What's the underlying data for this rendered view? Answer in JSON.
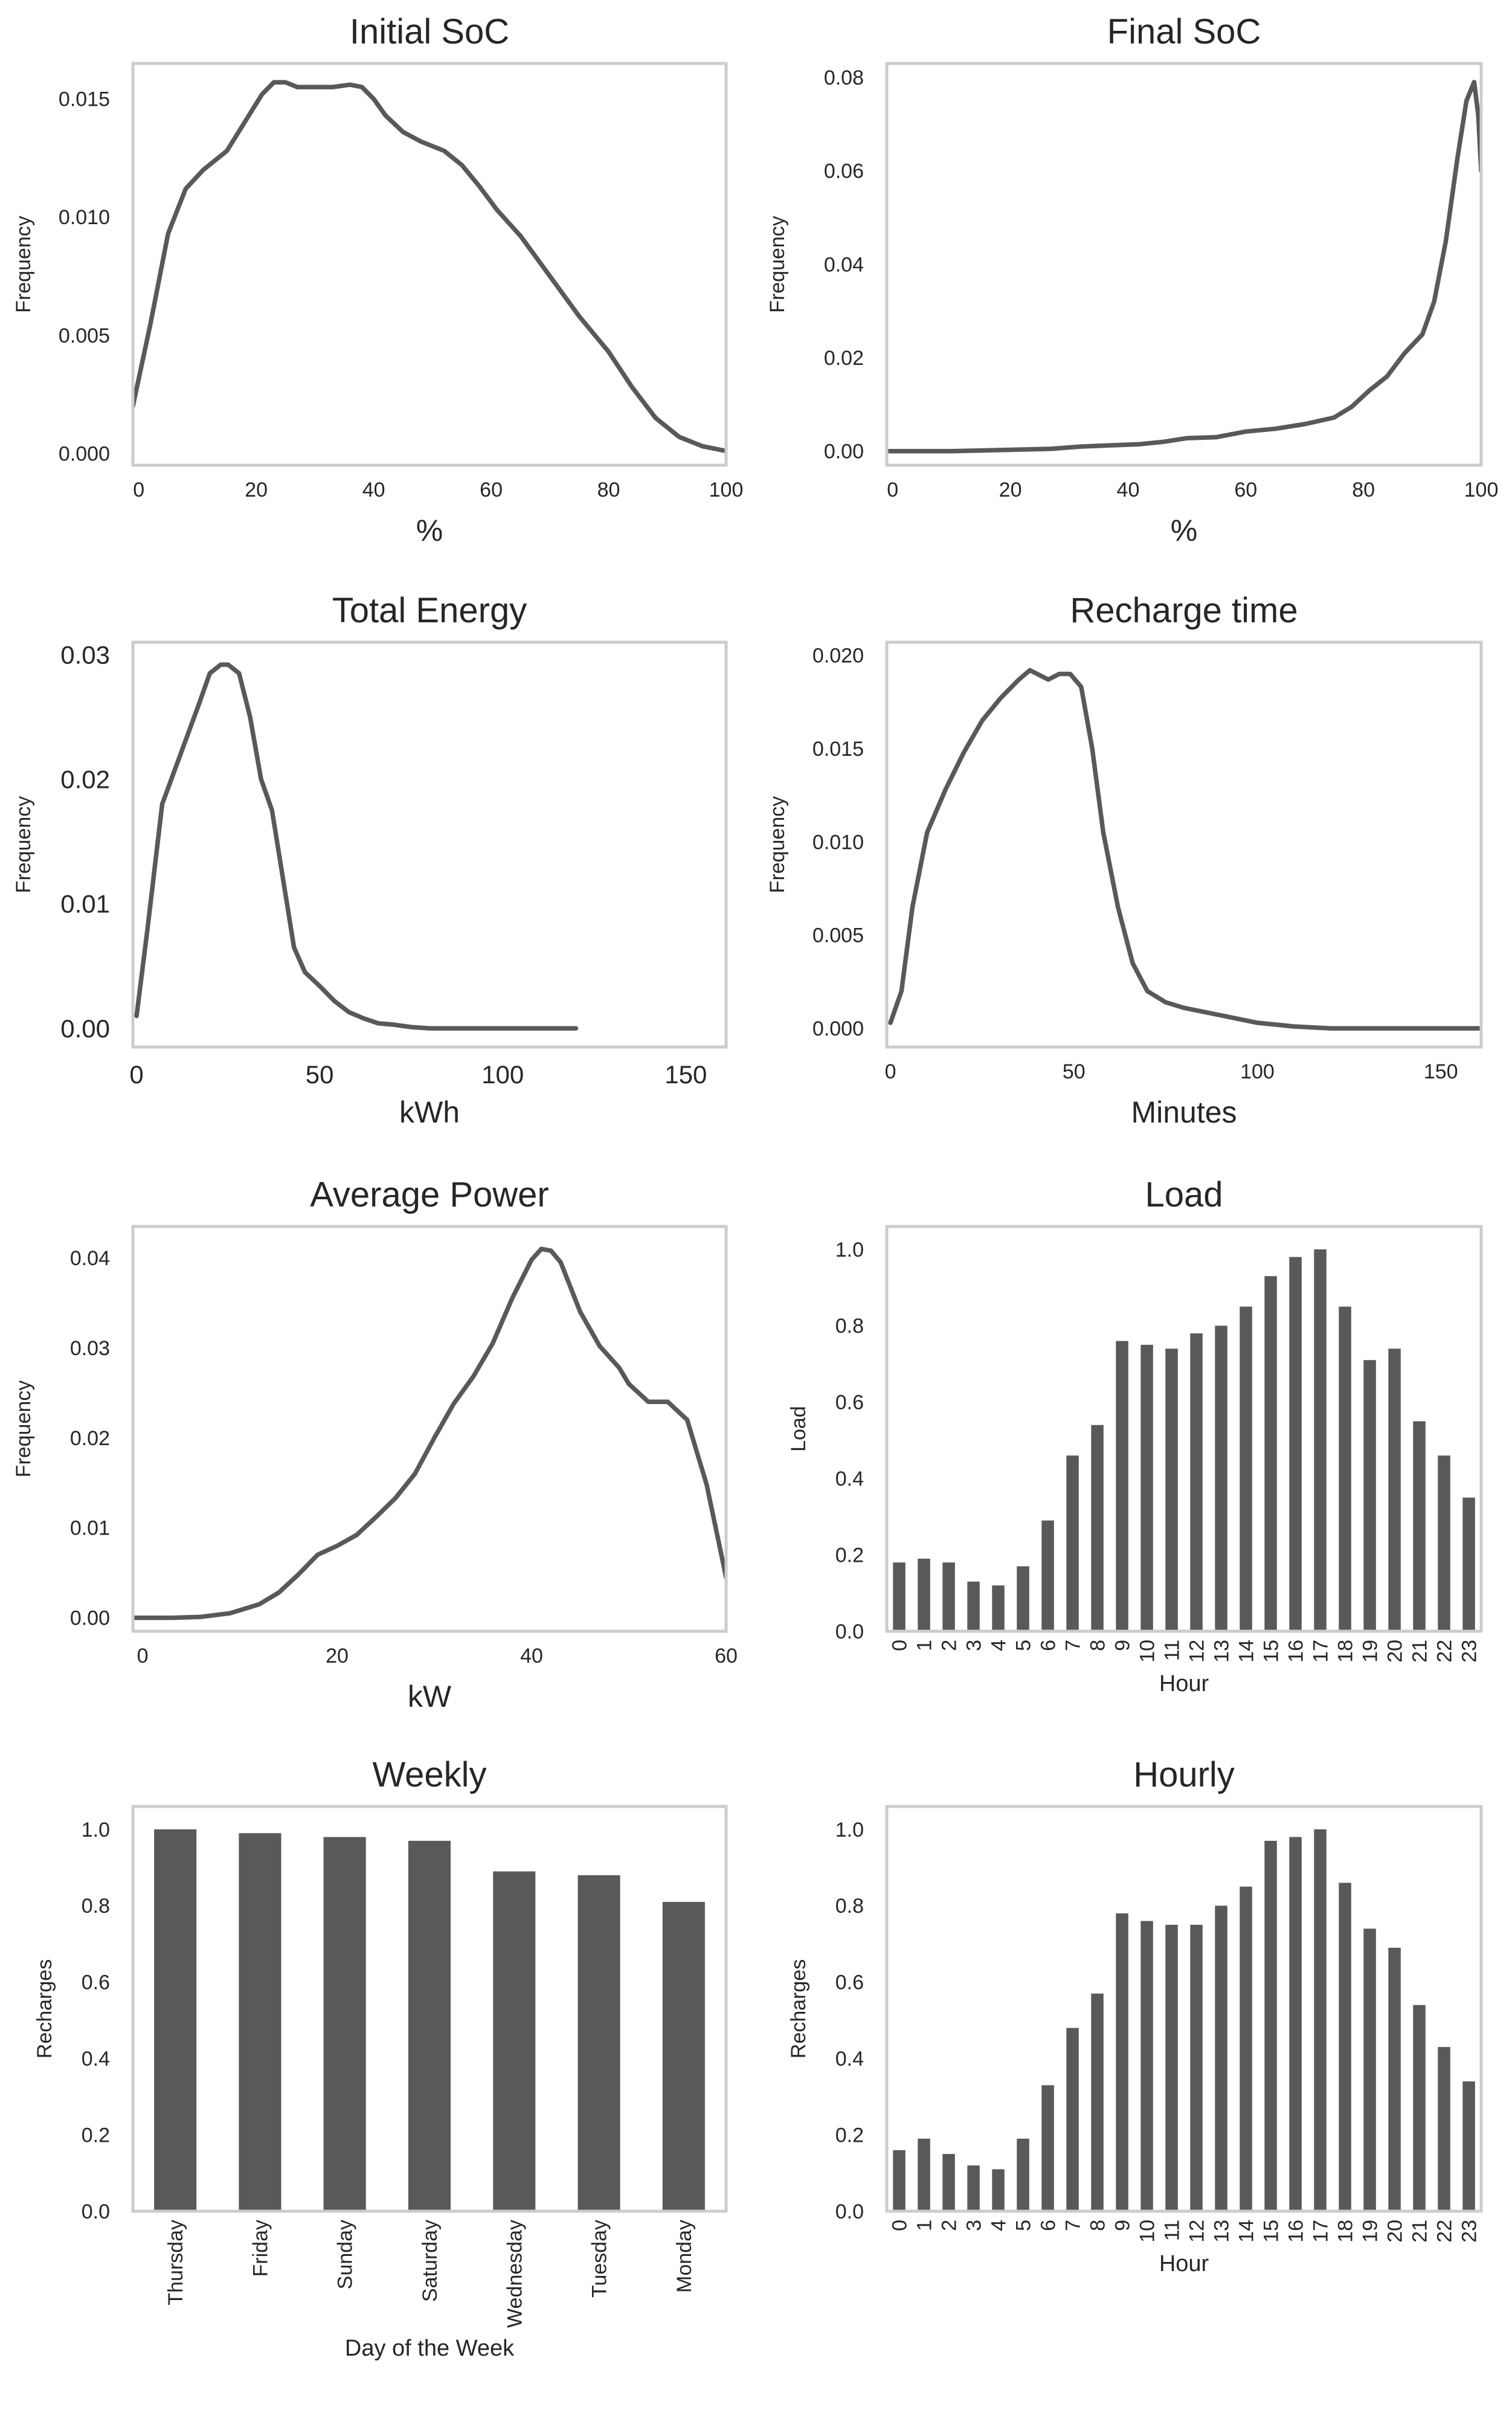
{
  "chart_data": [
    {
      "id": "initial_soc",
      "type": "line",
      "title": "Initial SoC",
      "xlabel": "%",
      "ylabel": "Frequency",
      "xlim": [
        -1,
        100
      ],
      "ylim": [
        -0.0005,
        0.0165
      ],
      "xticks": [
        0,
        20,
        40,
        60,
        80,
        100
      ],
      "xtick_labels": [
        "0",
        "20",
        "40",
        "60",
        "80",
        "100"
      ],
      "yticks": [
        0,
        0.005,
        0.01,
        0.015
      ],
      "ytick_labels": [
        "0.000",
        "0.005",
        "0.010",
        "0.015"
      ],
      "grid": false,
      "x": [
        -1,
        2,
        5,
        8,
        11,
        15,
        18,
        21,
        23,
        25,
        27,
        30,
        33,
        36,
        38,
        40,
        42,
        45,
        48,
        52,
        55,
        58,
        61,
        65,
        70,
        75,
        80,
        84,
        88,
        92,
        96,
        100
      ],
      "y": [
        0.002,
        0.0055,
        0.0093,
        0.0112,
        0.012,
        0.0128,
        0.014,
        0.0152,
        0.0157,
        0.0157,
        0.0155,
        0.0155,
        0.0155,
        0.0156,
        0.0155,
        0.015,
        0.0143,
        0.0136,
        0.0132,
        0.0128,
        0.0122,
        0.0113,
        0.0103,
        0.0092,
        0.0075,
        0.0058,
        0.0043,
        0.0028,
        0.0015,
        0.0007,
        0.0003,
        0.0001
      ]
    },
    {
      "id": "final_soc",
      "type": "line",
      "title": "Final SoC",
      "xlabel": "%",
      "ylabel": "Frequency",
      "xlim": [
        -1,
        100
      ],
      "ylim": [
        -0.003,
        0.083
      ],
      "xticks": [
        0,
        20,
        40,
        60,
        80,
        100
      ],
      "xtick_labels": [
        "0",
        "20",
        "40",
        "60",
        "80",
        "100"
      ],
      "yticks": [
        0,
        0.02,
        0.04,
        0.06,
        0.08
      ],
      "ytick_labels": [
        "0.00",
        "0.02",
        "0.04",
        "0.06",
        "0.08"
      ],
      "grid": false,
      "x": [
        -1,
        10,
        20,
        27,
        32,
        38,
        42,
        46,
        50,
        55,
        60,
        65,
        70,
        75,
        78,
        81,
        84,
        87,
        90,
        92,
        94,
        96,
        97.5,
        98.8,
        99.5,
        100
      ],
      "y": [
        0,
        0,
        0.0003,
        0.0005,
        0.001,
        0.0013,
        0.0015,
        0.002,
        0.0028,
        0.003,
        0.0042,
        0.0048,
        0.0058,
        0.0072,
        0.0095,
        0.013,
        0.016,
        0.021,
        0.025,
        0.032,
        0.045,
        0.063,
        0.075,
        0.079,
        0.072,
        0.06
      ]
    },
    {
      "id": "total_energy",
      "type": "line",
      "title": "Total Energy",
      "xlabel": "kWh",
      "ylabel": "Frequency",
      "xlim": [
        -1,
        161
      ],
      "ylim": [
        -0.0015,
        0.031
      ],
      "xticks": [
        0,
        50,
        100,
        150
      ],
      "xtick_labels": [
        "0",
        "50",
        "100",
        "150"
      ],
      "yticks": [
        0,
        0.01,
        0.02,
        0.03
      ],
      "ytick_labels": [
        "0.00",
        "0.01",
        "0.02",
        "0.03"
      ],
      "grid": false,
      "x": [
        0,
        3,
        7,
        12,
        17,
        20,
        23,
        25,
        28,
        31,
        34,
        37,
        40,
        43,
        46,
        50,
        54,
        58,
        62,
        66,
        70,
        75,
        80,
        90,
        100,
        110,
        120
      ],
      "y": [
        0.001,
        0.008,
        0.018,
        0.022,
        0.026,
        0.0285,
        0.0292,
        0.0292,
        0.0285,
        0.025,
        0.02,
        0.0175,
        0.012,
        0.0065,
        0.0045,
        0.0034,
        0.0022,
        0.0013,
        0.0008,
        0.0004,
        0.0003,
        0.0001,
        0,
        0,
        0,
        0,
        0
      ]
    },
    {
      "id": "recharge_time",
      "type": "line",
      "title": "Recharge time",
      "xlabel": "Minutes",
      "ylabel": "Frequency",
      "xlim": [
        -1,
        161
      ],
      "ylim": [
        -0.001,
        0.0207
      ],
      "xticks": [
        0,
        50,
        100,
        150
      ],
      "xtick_labels": [
        "0",
        "50",
        "100",
        "150"
      ],
      "yticks": [
        0,
        0.005,
        0.01,
        0.015,
        0.02
      ],
      "ytick_labels": [
        "0.000",
        "0.005",
        "0.010",
        "0.015",
        "0.020"
      ],
      "grid": false,
      "x": [
        0,
        3,
        6,
        10,
        15,
        20,
        25,
        30,
        35,
        38,
        40,
        43,
        46,
        49,
        52,
        55,
        58,
        62,
        66,
        70,
        75,
        80,
        90,
        100,
        110,
        120,
        140,
        161
      ],
      "y": [
        0.0003,
        0.002,
        0.0065,
        0.0105,
        0.0128,
        0.0148,
        0.0165,
        0.0177,
        0.0187,
        0.0192,
        0.019,
        0.0187,
        0.019,
        0.019,
        0.0183,
        0.015,
        0.0105,
        0.0065,
        0.0035,
        0.002,
        0.0014,
        0.0011,
        0.0007,
        0.0003,
        0.0001,
        0,
        0,
        0
      ]
    },
    {
      "id": "average_power",
      "type": "line",
      "title": "Average Power",
      "xlabel": "kW",
      "ylabel": "Frequency",
      "xlim": [
        -1,
        60
      ],
      "ylim": [
        -0.0015,
        0.0435
      ],
      "xticks": [
        0,
        20,
        40,
        60
      ],
      "xtick_labels": [
        "0",
        "20",
        "40",
        "60"
      ],
      "yticks": [
        0,
        0.01,
        0.02,
        0.03,
        0.04
      ],
      "ytick_labels": [
        "0.00",
        "0.01",
        "0.02",
        "0.03",
        "0.04"
      ],
      "grid": false,
      "x": [
        -1,
        3,
        6,
        9,
        12,
        14,
        16,
        18,
        20,
        22,
        24,
        26,
        28,
        30,
        32,
        34,
        36,
        38,
        40,
        41,
        42,
        43,
        45,
        47,
        49,
        50,
        52,
        54,
        56,
        58,
        60
      ],
      "y": [
        0,
        0,
        0.0001,
        0.0005,
        0.0015,
        0.0028,
        0.0048,
        0.007,
        0.008,
        0.0092,
        0.0112,
        0.0133,
        0.016,
        0.02,
        0.0238,
        0.0268,
        0.0305,
        0.0355,
        0.0398,
        0.041,
        0.0408,
        0.0395,
        0.034,
        0.0302,
        0.0278,
        0.026,
        0.024,
        0.024,
        0.022,
        0.0148,
        0.0045
      ]
    },
    {
      "id": "load",
      "type": "bar",
      "title": "Load",
      "xlabel": "Hour",
      "ylabel": "Load",
      "ylim": [
        0,
        1.06
      ],
      "yticks": [
        0,
        0.2,
        0.4,
        0.6,
        0.8,
        1.0
      ],
      "ytick_labels": [
        "0.0",
        "0.2",
        "0.4",
        "0.6",
        "0.8",
        "1.0"
      ],
      "grid": false,
      "categories": [
        "0",
        "1",
        "2",
        "3",
        "4",
        "5",
        "6",
        "7",
        "8",
        "9",
        "10",
        "11",
        "12",
        "13",
        "14",
        "15",
        "16",
        "17",
        "18",
        "19",
        "20",
        "21",
        "22",
        "23"
      ],
      "values": [
        0.18,
        0.19,
        0.18,
        0.13,
        0.12,
        0.17,
        0.29,
        0.46,
        0.54,
        0.76,
        0.75,
        0.74,
        0.78,
        0.8,
        0.85,
        0.93,
        0.98,
        1.0,
        0.85,
        0.71,
        0.74,
        0.55,
        0.46,
        0.35
      ]
    },
    {
      "id": "weekly",
      "type": "bar",
      "title": "Weekly",
      "xlabel": "Day of the Week",
      "ylabel": "Recharges",
      "ylim": [
        0,
        1.06
      ],
      "yticks": [
        0,
        0.2,
        0.4,
        0.6,
        0.8,
        1.0
      ],
      "ytick_labels": [
        "0.0",
        "0.2",
        "0.4",
        "0.6",
        "0.8",
        "1.0"
      ],
      "grid": false,
      "categories": [
        "Thursday",
        "Friday",
        "Sunday",
        "Saturday",
        "Wednesday",
        "Tuesday",
        "Monday"
      ],
      "values": [
        1.0,
        0.99,
        0.98,
        0.97,
        0.89,
        0.88,
        0.81
      ]
    },
    {
      "id": "hourly",
      "type": "bar",
      "title": "Hourly",
      "xlabel": "Hour",
      "ylabel": "Recharges",
      "ylim": [
        0,
        1.06
      ],
      "yticks": [
        0,
        0.2,
        0.4,
        0.6,
        0.8,
        1.0
      ],
      "ytick_labels": [
        "0.0",
        "0.2",
        "0.4",
        "0.6",
        "0.8",
        "1.0"
      ],
      "grid": false,
      "categories": [
        "0",
        "1",
        "2",
        "3",
        "4",
        "5",
        "6",
        "7",
        "8",
        "9",
        "10",
        "11",
        "12",
        "13",
        "14",
        "15",
        "16",
        "17",
        "18",
        "19",
        "20",
        "21",
        "22",
        "23"
      ],
      "values": [
        0.16,
        0.19,
        0.15,
        0.12,
        0.11,
        0.19,
        0.33,
        0.48,
        0.57,
        0.78,
        0.76,
        0.75,
        0.75,
        0.8,
        0.85,
        0.97,
        0.98,
        1.0,
        0.86,
        0.74,
        0.69,
        0.54,
        0.43,
        0.34
      ]
    }
  ]
}
